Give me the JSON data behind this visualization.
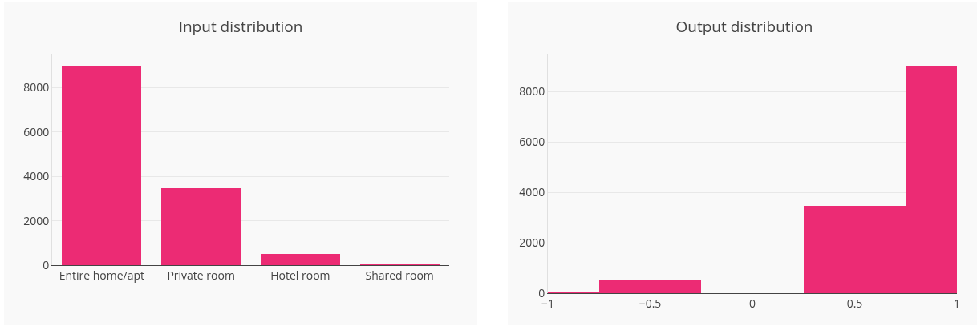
{
  "chart_data": [
    {
      "type": "bar",
      "title": "Input distribution",
      "categories": [
        "Entire home/apt",
        "Private room",
        "Hotel room",
        "Shared room"
      ],
      "values": [
        9000,
        3450,
        500,
        60
      ],
      "color": "#ec2b74",
      "ylim": [
        0,
        9500
      ],
      "yticks": [
        0,
        2000,
        4000,
        6000,
        8000
      ],
      "grid": "y"
    },
    {
      "type": "histogram",
      "title": "Output distribution",
      "bins": [
        -1,
        -0.75,
        -0.25,
        0.25,
        0.75,
        1
      ],
      "values": [
        60,
        500,
        0,
        3450,
        9000
      ],
      "color": "#ec2b74",
      "xlim": [
        -1,
        1
      ],
      "xticks": [
        -1,
        -0.5,
        0,
        0.5,
        1
      ],
      "ylim": [
        0,
        9470
      ],
      "yticks": [
        0,
        2000,
        4000,
        6000,
        8000
      ],
      "grid": "y"
    }
  ]
}
